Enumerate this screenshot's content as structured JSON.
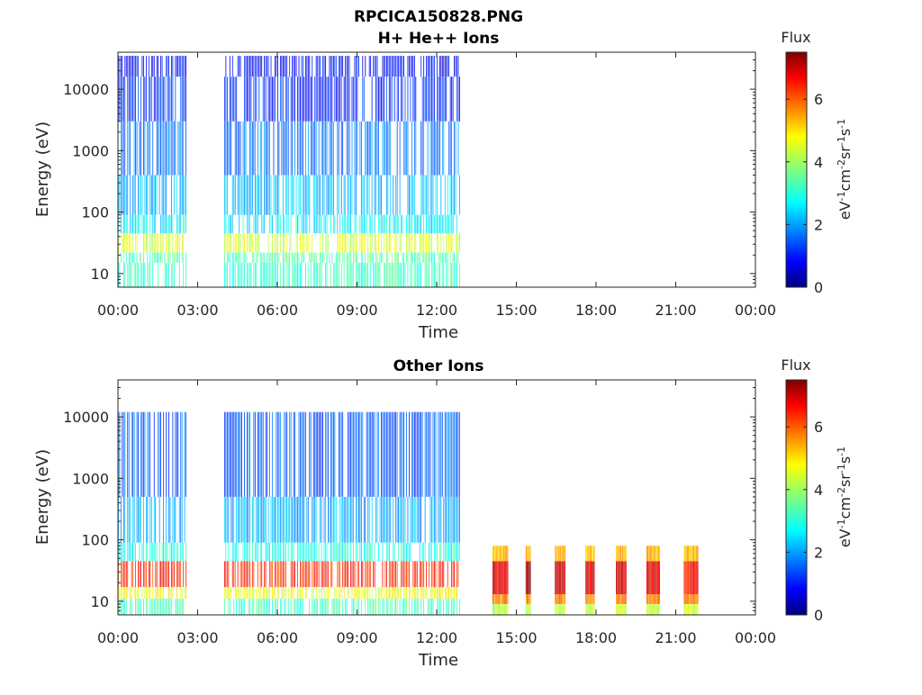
{
  "figure": {
    "filename": "RPCICA150828.PNG"
  },
  "chart_data": [
    {
      "type": "heatmap",
      "title": "H+ He++ Ions",
      "xlabel": "Time",
      "ylabel": "Energy (eV)",
      "y_scale": "log",
      "xlim": [
        0,
        24
      ],
      "ylim": [
        6,
        40000
      ],
      "x_tick_labels": [
        "00:00",
        "03:00",
        "06:00",
        "09:00",
        "12:00",
        "15:00",
        "18:00",
        "21:00",
        "00:00"
      ],
      "y_tick_labels": [
        "10",
        "100",
        "1000",
        "10000"
      ],
      "y_tick_values": [
        10,
        100,
        1000,
        10000
      ],
      "colorbar": {
        "title": "Flux",
        "label": "eV-1cm-2sr-1s-1",
        "range": [
          0,
          7.5
        ],
        "tick_labels": [
          "0",
          "2",
          "4",
          "6"
        ],
        "tick_values": [
          0,
          2,
          4,
          6
        ],
        "colormap": "jet"
      },
      "data_intervals_hours": [
        [
          0.0,
          2.6
        ],
        [
          4.0,
          12.9
        ]
      ],
      "energy_bands": [
        {
          "e_min": 6,
          "e_max": 15,
          "flux": 3.2
        },
        {
          "e_min": 15,
          "e_max": 22,
          "flux": 3.4
        },
        {
          "e_min": 22,
          "e_max": 45,
          "flux": 4.4
        },
        {
          "e_min": 45,
          "e_max": 90,
          "flux": 2.7
        },
        {
          "e_min": 90,
          "e_max": 400,
          "flux": 2.3
        },
        {
          "e_min": 400,
          "e_max": 3000,
          "flux": 1.8
        },
        {
          "e_min": 3000,
          "e_max": 16000,
          "flux": 1.2
        },
        {
          "e_min": 16000,
          "e_max": 35000,
          "flux": 1.0
        }
      ]
    },
    {
      "type": "heatmap",
      "title": "Other Ions",
      "xlabel": "Time",
      "ylabel": "Energy (eV)",
      "y_scale": "log",
      "xlim": [
        0,
        24
      ],
      "ylim": [
        6,
        40000
      ],
      "x_tick_labels": [
        "00:00",
        "03:00",
        "06:00",
        "09:00",
        "12:00",
        "15:00",
        "18:00",
        "21:00",
        "00:00"
      ],
      "y_tick_labels": [
        "10",
        "100",
        "1000",
        "10000"
      ],
      "y_tick_values": [
        10,
        100,
        1000,
        10000
      ],
      "colorbar": {
        "title": "Flux",
        "label": "eV-1cm-2sr-1s-1",
        "range": [
          0,
          7.5
        ],
        "tick_labels": [
          "0",
          "2",
          "4",
          "6"
        ],
        "tick_values": [
          0,
          2,
          4,
          6
        ],
        "colormap": "jet"
      },
      "data_intervals_hours": [
        [
          0.0,
          2.6
        ],
        [
          4.0,
          12.9
        ]
      ],
      "energy_bands": [
        {
          "e_min": 6,
          "e_max": 11,
          "flux": 3.3
        },
        {
          "e_min": 11,
          "e_max": 17,
          "flux": 4.6
        },
        {
          "e_min": 17,
          "e_max": 45,
          "flux": 6.3
        },
        {
          "e_min": 45,
          "e_max": 90,
          "flux": 3.0
        },
        {
          "e_min": 90,
          "e_max": 500,
          "flux": 2.2
        },
        {
          "e_min": 500,
          "e_max": 12000,
          "flux": 1.6
        }
      ],
      "bursts": [
        {
          "start": 14.1,
          "end": 14.7,
          "e_max": 80,
          "flux": 6.8
        },
        {
          "start": 15.35,
          "end": 15.55,
          "e_max": 80,
          "flux": 7.0
        },
        {
          "start": 16.45,
          "end": 16.85,
          "e_max": 80,
          "flux": 6.9
        },
        {
          "start": 17.6,
          "end": 17.95,
          "e_max": 80,
          "flux": 6.9
        },
        {
          "start": 18.75,
          "end": 19.15,
          "e_max": 80,
          "flux": 6.8
        },
        {
          "start": 19.9,
          "end": 20.4,
          "e_max": 80,
          "flux": 6.7
        },
        {
          "start": 21.3,
          "end": 21.85,
          "e_max": 80,
          "flux": 6.4
        }
      ]
    }
  ]
}
